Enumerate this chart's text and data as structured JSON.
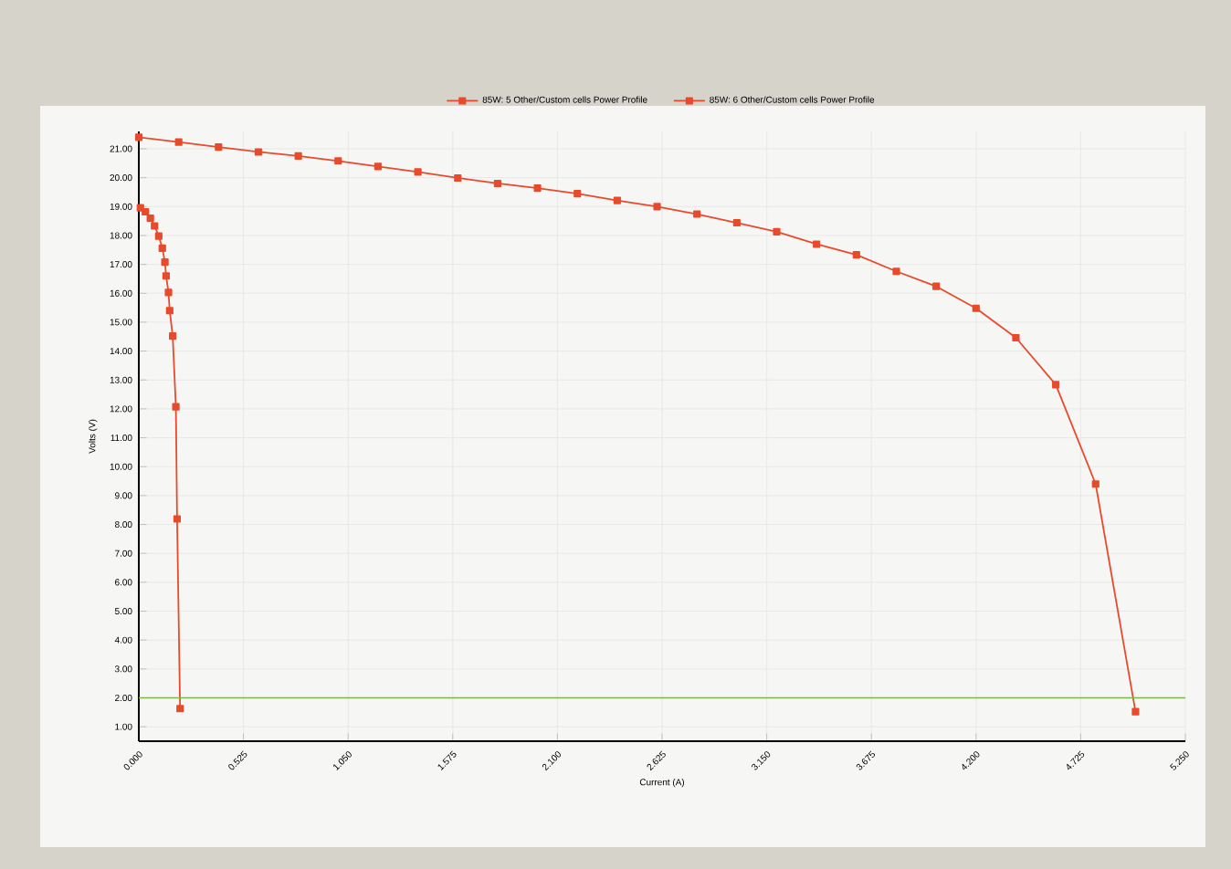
{
  "chart_data": {
    "type": "line",
    "xlabel": "Current (A)",
    "ylabel": "Volts (V)",
    "marker": "square",
    "grid": true,
    "legend": "top",
    "xlim": [
      0,
      5.25
    ],
    "ylim": [
      0.5,
      21.6
    ],
    "xticks": [
      {
        "value": 0,
        "label": "0.000"
      },
      {
        "value": 0.525,
        "label": "0.525"
      },
      {
        "value": 1.05,
        "label": "1.050"
      },
      {
        "value": 1.575,
        "label": "1.575"
      },
      {
        "value": 2.1,
        "label": "2.100"
      },
      {
        "value": 2.625,
        "label": "2.625"
      },
      {
        "value": 3.15,
        "label": "3.150"
      },
      {
        "value": 3.675,
        "label": "3.675"
      },
      {
        "value": 4.2,
        "label": "4.200"
      },
      {
        "value": 4.725,
        "label": "4.725"
      },
      {
        "value": 5.25,
        "label": "5.250"
      }
    ],
    "yticks": [
      {
        "value": 1,
        "label": "1.00"
      },
      {
        "value": 2,
        "label": "2.00"
      },
      {
        "value": 3,
        "label": "3.00"
      },
      {
        "value": 4,
        "label": "4.00"
      },
      {
        "value": 5,
        "label": "5.00"
      },
      {
        "value": 6,
        "label": "6.00"
      },
      {
        "value": 7,
        "label": "7.00"
      },
      {
        "value": 8,
        "label": "8.00"
      },
      {
        "value": 9,
        "label": "9.00"
      },
      {
        "value": 10,
        "label": "10.00"
      },
      {
        "value": 11,
        "label": "11.00"
      },
      {
        "value": 12,
        "label": "12.00"
      },
      {
        "value": 13,
        "label": "13.00"
      },
      {
        "value": 14,
        "label": "14.00"
      },
      {
        "value": 15,
        "label": "15.00"
      },
      {
        "value": 16,
        "label": "16.00"
      },
      {
        "value": 17,
        "label": "17.00"
      },
      {
        "value": 18,
        "label": "18.00"
      },
      {
        "value": 19,
        "label": "19.00"
      },
      {
        "value": 20,
        "label": "20.00"
      },
      {
        "value": 21,
        "label": "21.00"
      }
    ],
    "ref_lines": [
      {
        "axis": "y",
        "value": 2,
        "color": "#7ab648"
      }
    ],
    "series": [
      {
        "name": "85W: 5 Other/Custom cells Power Profile",
        "color": "#e84a2c",
        "x": [
          0.008,
          0.033,
          0.058,
          0.079,
          0.1,
          0.118,
          0.131,
          0.137,
          0.149,
          0.155,
          0.17,
          0.186,
          0.192,
          0.207
        ],
        "values": [
          18.96,
          18.82,
          18.6,
          18.33,
          17.98,
          17.56,
          17.08,
          16.6,
          16.03,
          15.4,
          14.52,
          12.07,
          8.19,
          1.63
        ]
      },
      {
        "name": "85W: 6 Other/Custom cells Power Profile",
        "color": "#e84a2c",
        "x": [
          0,
          0.2,
          0.4,
          0.6,
          0.8,
          1.0,
          1.2,
          1.4,
          1.6,
          1.8,
          2.0,
          2.2,
          2.4,
          2.6,
          2.8,
          3.0,
          3.2,
          3.4,
          3.6,
          3.8,
          4.0,
          4.2,
          4.4,
          4.6,
          4.8,
          5.0
        ],
        "values": [
          21.4,
          21.23,
          21.06,
          20.89,
          20.75,
          20.58,
          20.39,
          20.2,
          19.99,
          19.8,
          19.64,
          19.45,
          19.21,
          19.0,
          18.74,
          18.44,
          18.13,
          17.7,
          17.33,
          16.76,
          16.24,
          15.48,
          14.46,
          12.84,
          9.4,
          1.52
        ]
      }
    ]
  }
}
